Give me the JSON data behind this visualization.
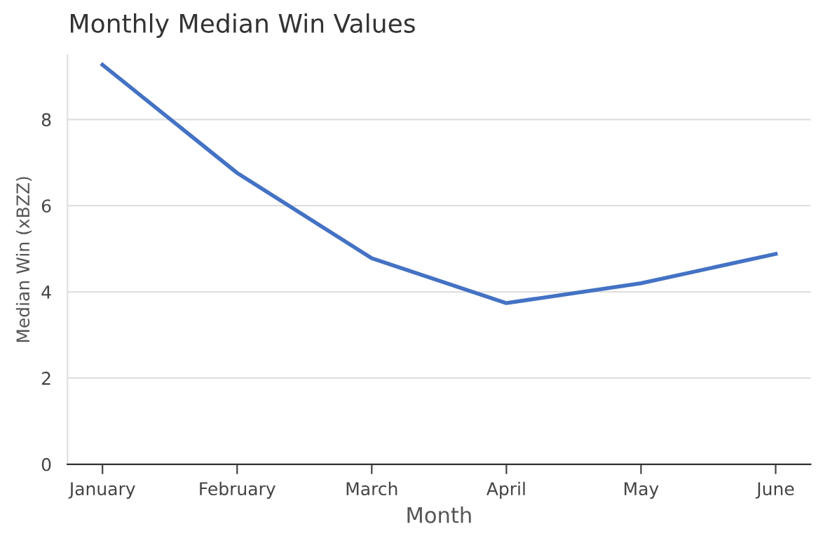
{
  "chart_data": {
    "type": "line",
    "title": "Monthly Median Win Values",
    "xlabel": "Month",
    "ylabel": "Median Win (xBZZ)",
    "categories": [
      "January",
      "February",
      "March",
      "April",
      "May",
      "June"
    ],
    "series": [
      {
        "color": "#4472c4",
        "values": [
          9.27,
          6.76,
          4.78,
          3.74,
          4.2,
          4.88
        ]
      }
    ],
    "ylim": [
      0,
      9.5
    ],
    "yticks": [
      0,
      2,
      4,
      6,
      8
    ],
    "grid": "y",
    "marker": "none",
    "line_style": "solid"
  }
}
